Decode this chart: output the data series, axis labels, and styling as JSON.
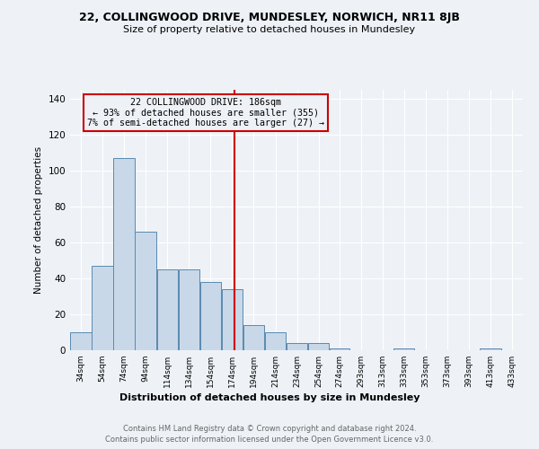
{
  "title1": "22, COLLINGWOOD DRIVE, MUNDESLEY, NORWICH, NR11 8JB",
  "title2": "Size of property relative to detached houses in Mundesley",
  "xlabel": "Distribution of detached houses by size in Mundesley",
  "ylabel": "Number of detached properties",
  "footnote1": "Contains HM Land Registry data © Crown copyright and database right 2024.",
  "footnote2": "Contains public sector information licensed under the Open Government Licence v3.0.",
  "annotation_line1": "22 COLLINGWOOD DRIVE: 186sqm",
  "annotation_line2": "← 93% of detached houses are smaller (355)",
  "annotation_line3": "7% of semi-detached houses are larger (27) →",
  "vline_x": 186,
  "bar_labels": [
    "34sqm",
    "54sqm",
    "74sqm",
    "94sqm",
    "114sqm",
    "134sqm",
    "154sqm",
    "174sqm",
    "194sqm",
    "214sqm",
    "234sqm",
    "254sqm",
    "274sqm",
    "293sqm",
    "313sqm",
    "333sqm",
    "353sqm",
    "373sqm",
    "393sqm",
    "413sqm",
    "433sqm"
  ],
  "bar_values": [
    10,
    47,
    107,
    66,
    45,
    45,
    38,
    34,
    14,
    10,
    4,
    4,
    1,
    0,
    0,
    1,
    0,
    0,
    0,
    1,
    0
  ],
  "bar_edges": [
    34,
    54,
    74,
    94,
    114,
    134,
    154,
    174,
    194,
    214,
    234,
    254,
    274,
    293,
    313,
    333,
    353,
    373,
    393,
    413,
    433,
    453
  ],
  "bar_color": "#c8d8e8",
  "bar_edgecolor": "#5a8ab0",
  "vline_color": "#cc0000",
  "annotation_box_edgecolor": "#cc0000",
  "background_color": "#eef2f7",
  "ylim": [
    0,
    145
  ],
  "yticks": [
    0,
    20,
    40,
    60,
    80,
    100,
    120,
    140
  ]
}
